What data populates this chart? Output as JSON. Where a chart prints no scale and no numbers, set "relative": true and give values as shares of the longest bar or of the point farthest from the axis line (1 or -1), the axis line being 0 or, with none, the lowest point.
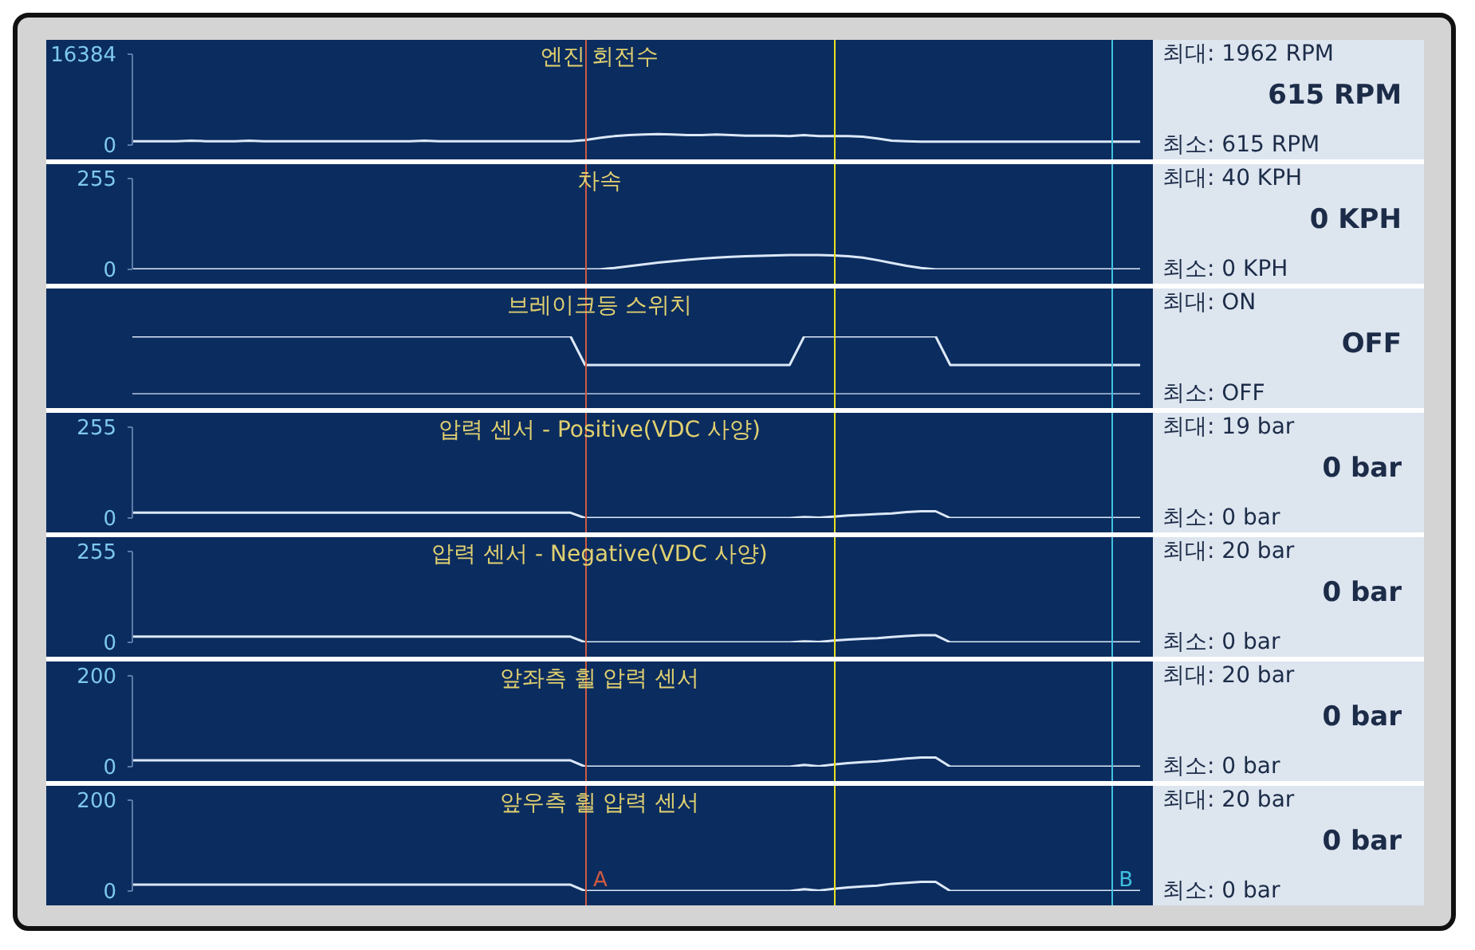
{
  "chart_data": [
    {
      "type": "line",
      "title": "엔진 회전수",
      "categories": [
        null,
        null,
        null,
        null,
        null,
        null,
        null,
        null,
        null,
        null,
        null,
        null,
        null,
        null,
        null,
        null,
        null,
        null,
        null,
        null,
        null,
        null,
        null,
        null,
        null,
        null,
        null,
        null,
        null,
        null,
        null,
        null,
        null,
        null,
        null,
        null,
        null,
        null,
        null,
        null,
        null,
        null,
        null,
        null,
        null,
        null,
        null,
        null,
        null,
        null,
        null,
        null,
        null,
        null,
        null,
        null,
        null,
        null,
        null,
        null,
        null,
        null,
        null,
        null,
        null,
        null,
        null,
        null,
        null,
        null
      ],
      "series": [
        {
          "color": "#dce8f8",
          "values": [
            700,
            700,
            700,
            700,
            800,
            700,
            700,
            700,
            800,
            700,
            700,
            700,
            700,
            700,
            700,
            700,
            700,
            700,
            700,
            700,
            800,
            700,
            700,
            700,
            700,
            700,
            700,
            700,
            700,
            700,
            700,
            900,
            1300,
            1600,
            1800,
            1900,
            1962,
            1900,
            1800,
            1800,
            1900,
            1800,
            1700,
            1700,
            1700,
            1600,
            1800,
            1600,
            1600,
            1600,
            1500,
            1200,
            800,
            700,
            600,
            615,
            600,
            600,
            600,
            600,
            600,
            600,
            600,
            600,
            600,
            600,
            600,
            600,
            600,
            600
          ]
        }
      ],
      "ylim": [
        0,
        16384
      ],
      "yticks": [
        0,
        16384
      ],
      "tick_labels": "y",
      "annotations": [
        "최대: 1962 RPM",
        "615 RPM",
        "최소: 615 RPM"
      ]
    },
    {
      "type": "line",
      "title": "차속",
      "categories": [
        null,
        null,
        null,
        null,
        null,
        null,
        null,
        null,
        null,
        null,
        null,
        null,
        null,
        null,
        null,
        null,
        null,
        null,
        null,
        null,
        null,
        null,
        null,
        null,
        null,
        null,
        null,
        null,
        null,
        null,
        null,
        null,
        null,
        null,
        null,
        null,
        null,
        null,
        null,
        null,
        null,
        null,
        null,
        null,
        null,
        null,
        null,
        null,
        null,
        null,
        null,
        null,
        null,
        null,
        null,
        null,
        null,
        null,
        null,
        null,
        null,
        null,
        null,
        null,
        null,
        null,
        null,
        null,
        null,
        null
      ],
      "series": [
        {
          "color": "#dce8f8",
          "values": [
            0,
            0,
            0,
            0,
            0,
            0,
            0,
            0,
            0,
            0,
            0,
            0,
            0,
            0,
            0,
            0,
            0,
            0,
            0,
            0,
            0,
            0,
            0,
            0,
            0,
            0,
            0,
            0,
            0,
            0,
            0,
            0,
            0,
            4,
            9,
            14,
            19,
            23,
            27,
            30,
            33,
            35,
            37,
            38,
            39,
            40,
            40,
            40,
            39,
            37,
            33,
            26,
            18,
            10,
            4,
            0,
            0,
            0,
            0,
            0,
            0,
            0,
            0,
            0,
            0,
            0,
            0,
            0,
            0,
            0
          ]
        }
      ],
      "ylim": [
        0,
        255
      ],
      "yticks": [
        0,
        255
      ],
      "tick_labels": "y",
      "annotations": [
        "최대: 40 KPH",
        "0 KPH",
        "최소: 0 KPH"
      ]
    },
    {
      "type": "line",
      "title": "브레이크등 스위치",
      "relative": true,
      "categories": [
        null,
        null,
        null,
        null,
        null,
        null,
        null,
        null,
        null,
        null,
        null,
        null,
        null,
        null,
        null,
        null,
        null,
        null,
        null,
        null,
        null,
        null,
        null,
        null,
        null,
        null,
        null,
        null,
        null,
        null,
        null,
        null,
        null,
        null,
        null,
        null,
        null,
        null,
        null,
        null,
        null,
        null,
        null,
        null,
        null,
        null,
        null,
        null,
        null,
        null,
        null,
        null,
        null,
        null,
        null,
        null,
        null,
        null,
        null,
        null,
        null,
        null,
        null,
        null,
        null,
        null,
        null,
        null,
        null,
        null
      ],
      "series": [
        {
          "color": "#dce8f8",
          "values": [
            1,
            1,
            1,
            1,
            1,
            1,
            1,
            1,
            1,
            1,
            1,
            1,
            1,
            1,
            1,
            1,
            1,
            1,
            1,
            1,
            1,
            1,
            1,
            1,
            1,
            1,
            1,
            1,
            1,
            1,
            1,
            0.5,
            0.5,
            0.5,
            0.5,
            0.5,
            0.5,
            0.5,
            0.5,
            0.5,
            0.5,
            0.5,
            0.5,
            0.5,
            0.5,
            0.5,
            1,
            1,
            1,
            1,
            1,
            1,
            1,
            1,
            1,
            1,
            0.5,
            0.5,
            0.5,
            0.5,
            0.5,
            0.5,
            0.5,
            0.5,
            0.5,
            0.5,
            0.5,
            0.5,
            0.5,
            0.5
          ]
        }
      ],
      "tick_labels": false,
      "annotations": [
        "최대: ON",
        "OFF",
        "최소: OFF"
      ]
    },
    {
      "type": "line",
      "title": "압력 센서 - Positive(VDC 사양)",
      "categories": [
        null,
        null,
        null,
        null,
        null,
        null,
        null,
        null,
        null,
        null,
        null,
        null,
        null,
        null,
        null,
        null,
        null,
        null,
        null,
        null,
        null,
        null,
        null,
        null,
        null,
        null,
        null,
        null,
        null,
        null,
        null,
        null,
        null,
        null,
        null,
        null,
        null,
        null,
        null,
        null,
        null,
        null,
        null,
        null,
        null,
        null,
        null,
        null,
        null,
        null,
        null,
        null,
        null,
        null,
        null,
        null,
        null,
        null,
        null,
        null,
        null,
        null,
        null,
        null,
        null,
        null,
        null,
        null,
        null,
        null
      ],
      "series": [
        {
          "color": "#dce8f8",
          "values": [
            15,
            15,
            15,
            15,
            15,
            15,
            15,
            15,
            15,
            15,
            15,
            15,
            15,
            15,
            15,
            15,
            15,
            15,
            15,
            15,
            15,
            15,
            15,
            15,
            15,
            15,
            15,
            15,
            15,
            15,
            15,
            0,
            0,
            0,
            0,
            0,
            0,
            0,
            0,
            0,
            0,
            0,
            0,
            0,
            0,
            0,
            3,
            1,
            4,
            7,
            9,
            11,
            13,
            17,
            19,
            19,
            0,
            0,
            0,
            0,
            0,
            0,
            0,
            0,
            0,
            0,
            0,
            0,
            0,
            0
          ]
        }
      ],
      "ylim": [
        0,
        255
      ],
      "yticks": [
        0,
        255
      ],
      "tick_labels": "y",
      "annotations": [
        "최대: 19 bar",
        "0 bar",
        "최소: 0 bar"
      ]
    },
    {
      "type": "line",
      "title": "압력 센서 - Negative(VDC 사양)",
      "categories": [
        null,
        null,
        null,
        null,
        null,
        null,
        null,
        null,
        null,
        null,
        null,
        null,
        null,
        null,
        null,
        null,
        null,
        null,
        null,
        null,
        null,
        null,
        null,
        null,
        null,
        null,
        null,
        null,
        null,
        null,
        null,
        null,
        null,
        null,
        null,
        null,
        null,
        null,
        null,
        null,
        null,
        null,
        null,
        null,
        null,
        null,
        null,
        null,
        null,
        null,
        null,
        null,
        null,
        null,
        null,
        null,
        null,
        null,
        null,
        null,
        null,
        null,
        null,
        null,
        null,
        null,
        null,
        null,
        null,
        null
      ],
      "series": [
        {
          "color": "#dce8f8",
          "values": [
            16,
            16,
            16,
            16,
            16,
            16,
            16,
            16,
            16,
            16,
            16,
            16,
            16,
            16,
            16,
            16,
            16,
            16,
            16,
            16,
            16,
            16,
            16,
            16,
            16,
            16,
            16,
            16,
            16,
            16,
            16,
            0,
            0,
            0,
            0,
            0,
            0,
            0,
            0,
            0,
            0,
            0,
            0,
            0,
            0,
            0,
            3,
            1,
            5,
            8,
            10,
            12,
            15,
            18,
            20,
            20,
            0,
            0,
            0,
            0,
            0,
            0,
            0,
            0,
            0,
            0,
            0,
            0,
            0,
            0
          ]
        }
      ],
      "ylim": [
        0,
        255
      ],
      "yticks": [
        0,
        255
      ],
      "tick_labels": "y",
      "annotations": [
        "최대: 20 bar",
        "0 bar",
        "최소: 0 bar"
      ]
    },
    {
      "type": "line",
      "title": "앞좌측 휠 압력 센서",
      "categories": [
        null,
        null,
        null,
        null,
        null,
        null,
        null,
        null,
        null,
        null,
        null,
        null,
        null,
        null,
        null,
        null,
        null,
        null,
        null,
        null,
        null,
        null,
        null,
        null,
        null,
        null,
        null,
        null,
        null,
        null,
        null,
        null,
        null,
        null,
        null,
        null,
        null,
        null,
        null,
        null,
        null,
        null,
        null,
        null,
        null,
        null,
        null,
        null,
        null,
        null,
        null,
        null,
        null,
        null,
        null,
        null,
        null,
        null,
        null,
        null,
        null,
        null,
        null,
        null,
        null,
        null,
        null,
        null,
        null,
        null
      ],
      "series": [
        {
          "color": "#dce8f8",
          "values": [
            14,
            14,
            14,
            14,
            14,
            14,
            14,
            14,
            14,
            14,
            14,
            14,
            14,
            14,
            14,
            14,
            14,
            14,
            14,
            14,
            14,
            14,
            14,
            14,
            14,
            14,
            14,
            14,
            14,
            14,
            14,
            0,
            0,
            0,
            0,
            0,
            0,
            0,
            0,
            0,
            0,
            0,
            0,
            0,
            0,
            0,
            4,
            1,
            5,
            8,
            10,
            12,
            15,
            18,
            20,
            20,
            0,
            0,
            0,
            0,
            0,
            0,
            0,
            0,
            0,
            0,
            0,
            0,
            0,
            0
          ]
        }
      ],
      "ylim": [
        0,
        200
      ],
      "yticks": [
        0,
        200
      ],
      "tick_labels": "y",
      "annotations": [
        "최대: 20 bar",
        "0 bar",
        "최소: 0 bar"
      ]
    },
    {
      "type": "line",
      "title": "앞우측 휠 압력 센서",
      "categories": [
        null,
        null,
        null,
        null,
        null,
        null,
        null,
        null,
        null,
        null,
        null,
        null,
        null,
        null,
        null,
        null,
        null,
        null,
        null,
        null,
        null,
        null,
        null,
        null,
        null,
        null,
        null,
        null,
        null,
        null,
        null,
        null,
        null,
        null,
        null,
        null,
        null,
        null,
        null,
        null,
        null,
        null,
        null,
        null,
        null,
        null,
        null,
        null,
        null,
        null,
        null,
        null,
        null,
        null,
        null,
        null,
        null,
        null,
        null,
        null,
        null,
        null,
        null,
        null,
        null,
        null,
        null,
        null,
        null,
        null
      ],
      "series": [
        {
          "color": "#dce8f8",
          "values": [
            14,
            14,
            14,
            14,
            14,
            14,
            14,
            14,
            14,
            14,
            14,
            14,
            14,
            14,
            14,
            14,
            14,
            14,
            14,
            14,
            14,
            14,
            14,
            14,
            14,
            14,
            14,
            14,
            14,
            14,
            14,
            0,
            0,
            0,
            0,
            0,
            0,
            0,
            0,
            0,
            0,
            0,
            0,
            0,
            0,
            0,
            4,
            1,
            5,
            8,
            10,
            12,
            16,
            18,
            20,
            20,
            0,
            0,
            0,
            0,
            0,
            0,
            0,
            0,
            0,
            0,
            0,
            0,
            0,
            0
          ]
        }
      ],
      "ylim": [
        0,
        200
      ],
      "yticks": [
        0,
        200
      ],
      "tick_labels": "y",
      "annotations": [
        "최대: 20 bar",
        "0 bar",
        "최소: 0 bar",
        "A",
        "B"
      ]
    }
  ]
}
